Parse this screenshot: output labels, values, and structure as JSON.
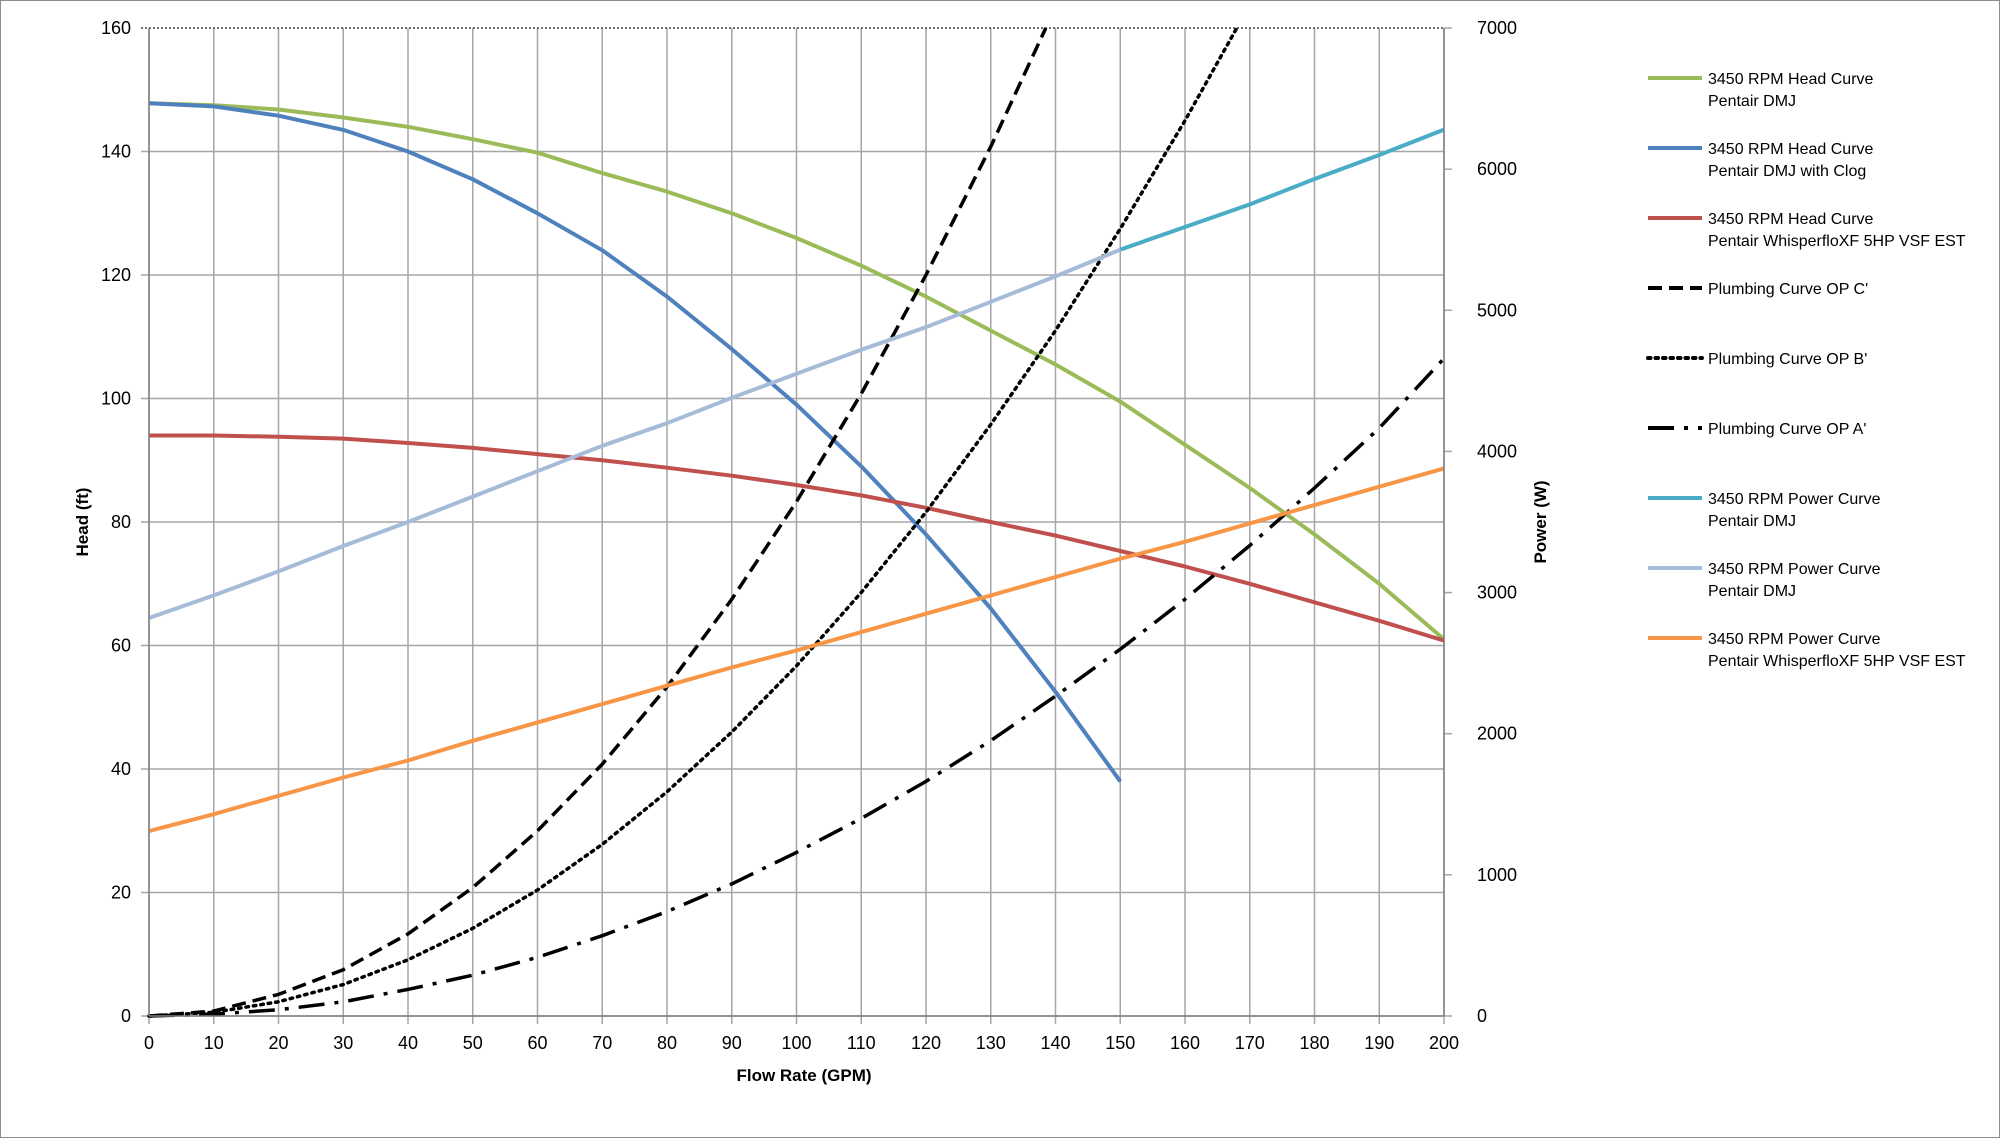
{
  "chart_data": {
    "type": "line",
    "xlabel": "Flow Rate (GPM)",
    "ylabel": "Head (ft)",
    "y2label": "Power (W)",
    "xlim": [
      0,
      200
    ],
    "ylim": [
      0,
      160
    ],
    "y2lim": [
      0,
      7000
    ],
    "xticks": [
      "0",
      "10",
      "20",
      "30",
      "40",
      "50",
      "60",
      "70",
      "80",
      "90",
      "100",
      "110",
      "120",
      "130",
      "140",
      "150",
      "160",
      "170",
      "180",
      "190",
      "200"
    ],
    "yticks": [
      "0",
      "20",
      "40",
      "60",
      "80",
      "100",
      "120",
      "140",
      "160"
    ],
    "y2ticks": [
      "0",
      "1000",
      "2000",
      "3000",
      "4000",
      "5000",
      "6000",
      "7000"
    ],
    "grid": true,
    "legend_position": "right",
    "series": [
      {
        "name": "3450 RPM Head Curve\nPentair DMJ",
        "axis": "left",
        "color": "#9bbb59",
        "dash": "solid",
        "x": [
          0,
          10,
          20,
          30,
          40,
          50,
          60,
          70,
          80,
          90,
          100,
          110,
          120,
          130,
          140,
          150,
          160,
          170,
          180,
          190,
          200
        ],
        "y": [
          147.8,
          147.5,
          146.8,
          145.5,
          144,
          142,
          139.8,
          136.5,
          133.5,
          130,
          126,
          121.5,
          116.5,
          111,
          105.5,
          99.5,
          92.5,
          85.5,
          78,
          70,
          61
        ]
      },
      {
        "name": "3450 RPM Head Curve\nPentair DMJ with Clog",
        "axis": "left",
        "color": "#4f81bd",
        "dash": "solid",
        "x": [
          0,
          10,
          20,
          30,
          40,
          50,
          60,
          70,
          80,
          90,
          100,
          110,
          120,
          130,
          140,
          150
        ],
        "y": [
          147.8,
          147.3,
          145.8,
          143.5,
          140,
          135.5,
          130,
          124,
          116.5,
          108,
          99,
          89,
          78,
          66,
          52.5,
          38
        ]
      },
      {
        "name": "3450 RPM Head Curve\nPentair WhisperfloXF 5HP VSF EST",
        "axis": "left",
        "color": "#c0504d",
        "dash": "solid",
        "x": [
          0,
          10,
          20,
          30,
          40,
          50,
          60,
          70,
          80,
          90,
          100,
          110,
          120,
          130,
          140,
          150,
          160,
          170,
          180,
          190,
          200
        ],
        "y": [
          94,
          94,
          93.8,
          93.5,
          92.8,
          92,
          91,
          90,
          88.8,
          87.5,
          86,
          84.3,
          82.3,
          80,
          77.8,
          75.3,
          72.8,
          70,
          67,
          64,
          60.8
        ]
      },
      {
        "name": "Plumbing Curve OP C'",
        "axis": "left",
        "color": "#000000",
        "dash": "dashed",
        "x": [
          0,
          10,
          20,
          30,
          40,
          50,
          60,
          70,
          80,
          90,
          100,
          110,
          120,
          130,
          138.5
        ],
        "y": [
          0,
          0.8,
          3.5,
          7.5,
          13.3,
          20.8,
          30,
          40.8,
          53.3,
          67.5,
          83.3,
          100.8,
          120,
          140.8,
          160
        ]
      },
      {
        "name": "Plumbing Curve OP B'",
        "axis": "left",
        "color": "#000000",
        "dash": "dotted",
        "x": [
          0,
          10,
          20,
          30,
          40,
          50,
          60,
          70,
          80,
          90,
          100,
          110,
          120,
          130,
          140,
          150,
          160,
          168
        ],
        "y": [
          0,
          0.6,
          2.3,
          5.1,
          9.1,
          14.2,
          20.4,
          27.8,
          36.3,
          46,
          56.7,
          68.6,
          81.6,
          95.8,
          111,
          127.5,
          145,
          160
        ]
      },
      {
        "name": "Plumbing Curve OP A'",
        "axis": "left",
        "color": "#000000",
        "dash": "dashdot",
        "x": [
          0,
          10,
          20,
          30,
          40,
          50,
          60,
          70,
          80,
          90,
          100,
          110,
          120,
          130,
          140,
          150,
          160,
          170,
          180,
          190,
          200
        ],
        "y": [
          0,
          0.3,
          1,
          2.3,
          4.3,
          6.6,
          9.5,
          13,
          16.9,
          21.4,
          26.5,
          32,
          38,
          44.6,
          51.8,
          59.4,
          67.5,
          76.2,
          85.5,
          95.2,
          106.5
        ]
      },
      {
        "name": "3450 RPM Power Curve\nPentair DMJ",
        "axis": "right",
        "color": "#4bacc6",
        "dash": "solid",
        "x": [
          150,
          160,
          170,
          180,
          190,
          200
        ],
        "y": [
          5430,
          5590,
          5750,
          5930,
          6100,
          6280
        ]
      },
      {
        "name": "3450 RPM Power Curve\nPentair DMJ",
        "axis": "right",
        "color": "#a6bbd8",
        "dash": "solid",
        "x": [
          0,
          10,
          20,
          30,
          40,
          50,
          60,
          70,
          80,
          90,
          100,
          110,
          120,
          130,
          140,
          150
        ],
        "y": [
          2820,
          2980,
          3150,
          3330,
          3500,
          3680,
          3860,
          4040,
          4200,
          4380,
          4550,
          4720,
          4880,
          5060,
          5240,
          5430
        ]
      },
      {
        "name": "3450 RPM Power Curve\nPentair WhisperfloXF 5HP VSF EST",
        "axis": "right",
        "color": "#f79646",
        "dash": "solid",
        "x": [
          0,
          10,
          20,
          30,
          40,
          50,
          60,
          70,
          80,
          90,
          100,
          110,
          120,
          130,
          140,
          150,
          160,
          170,
          180,
          190,
          200
        ],
        "y": [
          1310,
          1430,
          1560,
          1690,
          1810,
          1950,
          2080,
          2210,
          2340,
          2470,
          2590,
          2720,
          2850,
          2980,
          3110,
          3240,
          3360,
          3490,
          3620,
          3750,
          3880
        ]
      }
    ]
  }
}
